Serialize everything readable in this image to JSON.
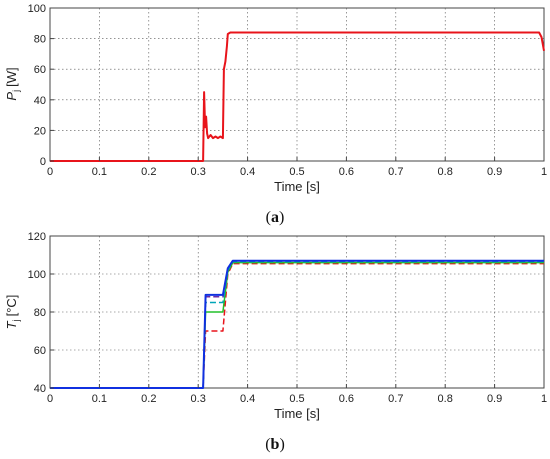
{
  "chart_data": [
    {
      "type": "line",
      "panel_label": "a",
      "xlabel": "Time [s]",
      "ylabel": "P",
      "ylabel_sub": "j",
      "ylabel_unit": "[W]",
      "xlim": [
        0,
        1
      ],
      "ylim": [
        0,
        100
      ],
      "xticks": [
        "0",
        "0.1",
        "0.2",
        "0.3",
        "0.4",
        "0.5",
        "0.6",
        "0.7",
        "0.8",
        "0.9",
        "1"
      ],
      "yticks": [
        "0",
        "20",
        "40",
        "60",
        "80",
        "100"
      ],
      "grid": true,
      "series": [
        {
          "color": "#e8141b",
          "dash": "solid",
          "width": 2,
          "x": [
            0,
            0.31,
            0.312,
            0.314,
            0.316,
            0.318,
            0.32,
            0.325,
            0.33,
            0.335,
            0.34,
            0.345,
            0.35,
            0.352,
            0.355,
            0.358,
            0.36,
            0.365,
            0.37,
            0.5,
            0.7,
            0.9,
            0.99,
            0.995,
            1.0
          ],
          "y": [
            0,
            0,
            45,
            22,
            29,
            18,
            15,
            17,
            15,
            16,
            15,
            16,
            15,
            60,
            65,
            75,
            83,
            84,
            84,
            84,
            84,
            84,
            84,
            81,
            72
          ]
        }
      ]
    },
    {
      "type": "line",
      "panel_label": "b",
      "xlabel": "Time [s]",
      "ylabel": "T",
      "ylabel_sub": "j",
      "ylabel_unit": "[°C]",
      "xlim": [
        0,
        1
      ],
      "ylim": [
        40,
        120
      ],
      "xticks": [
        "0",
        "0.1",
        "0.2",
        "0.3",
        "0.4",
        "0.5",
        "0.6",
        "0.7",
        "0.8",
        "0.9",
        "1"
      ],
      "yticks": [
        "40",
        "60",
        "80",
        "100",
        "120"
      ],
      "grid": true,
      "series": [
        {
          "color": "#e8141b",
          "dash": "dash",
          "width": 1.5,
          "x": [
            0,
            0.31,
            0.315,
            0.33,
            0.35,
            0.36,
            0.37,
            1.0
          ],
          "y": [
            40,
            40,
            70,
            70,
            70,
            100,
            105.5,
            105.5
          ]
        },
        {
          "color": "#22c02a",
          "dash": "solid",
          "width": 1.5,
          "x": [
            0,
            0.31,
            0.315,
            0.33,
            0.35,
            0.36,
            0.37,
            1.0
          ],
          "y": [
            40,
            40,
            80,
            80,
            80,
            101,
            106,
            106
          ]
        },
        {
          "color": "#00a6b8",
          "dash": "dash",
          "width": 1.5,
          "x": [
            0,
            0.31,
            0.315,
            0.33,
            0.35,
            0.36,
            0.37,
            1.0
          ],
          "y": [
            40,
            40,
            85,
            85,
            85,
            102,
            106.5,
            106.5
          ]
        },
        {
          "color": "#6a2aa8",
          "dash": "dash",
          "width": 1.5,
          "x": [
            0,
            0.31,
            0.315,
            0.33,
            0.35,
            0.36,
            0.37,
            1.0
          ],
          "y": [
            40,
            40,
            88,
            88,
            88,
            103,
            107,
            107
          ]
        },
        {
          "color": "#1030e0",
          "dash": "solid",
          "width": 2,
          "x": [
            0,
            0.31,
            0.315,
            0.33,
            0.35,
            0.36,
            0.37,
            1.0
          ],
          "y": [
            40,
            40,
            89,
            89,
            89,
            103,
            107,
            107
          ]
        }
      ]
    }
  ]
}
